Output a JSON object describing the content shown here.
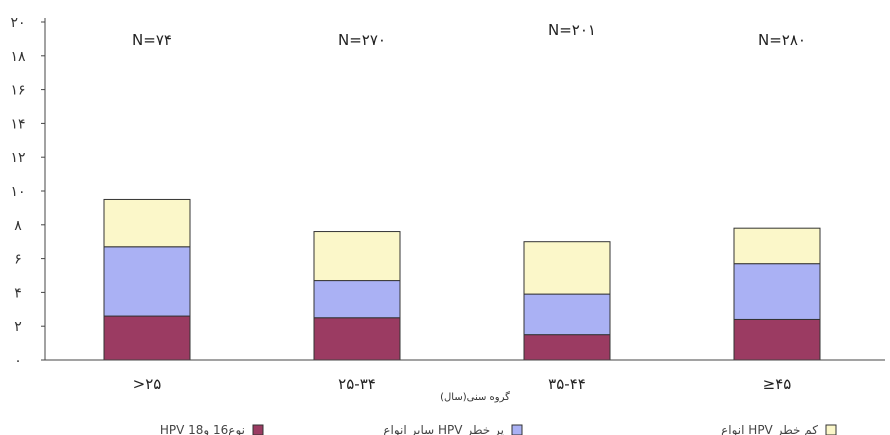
{
  "chart_data": {
    "type": "bar",
    "stacked": true,
    "categories": [
      ">۲۵",
      "۲۵-۳۴",
      "۳۵-۴۴",
      "≥۴۵"
    ],
    "n_labels": [
      "N=۷۴",
      "N=۲۷۰",
      "N=۲۰۱",
      "N=۲۸۰"
    ],
    "series": [
      {
        "name": "HPV نوع16 و18",
        "color": "#9b3b62",
        "values": [
          2.6,
          2.5,
          1.5,
          2.4
        ]
      },
      {
        "name": "سایر انواع HPV پر خطر",
        "color": "#aab1f4",
        "values": [
          4.1,
          2.2,
          2.4,
          3.3
        ]
      },
      {
        "name": "انواع HPV کم خطر",
        "color": "#fbf7c9",
        "values": [
          2.8,
          2.9,
          3.1,
          2.1
        ]
      }
    ],
    "ylim": [
      0,
      20
    ],
    "y_ticks": [
      "۰",
      "۲",
      "۴",
      "۶",
      "۸",
      "۱۰",
      "۱۲",
      "۱۴",
      "۱۶",
      "۱۸",
      "۲۰"
    ],
    "xlabel": "گروه سنی(سال)",
    "ylabel": "",
    "title": "",
    "grid": false,
    "legend_position": "bottom"
  }
}
